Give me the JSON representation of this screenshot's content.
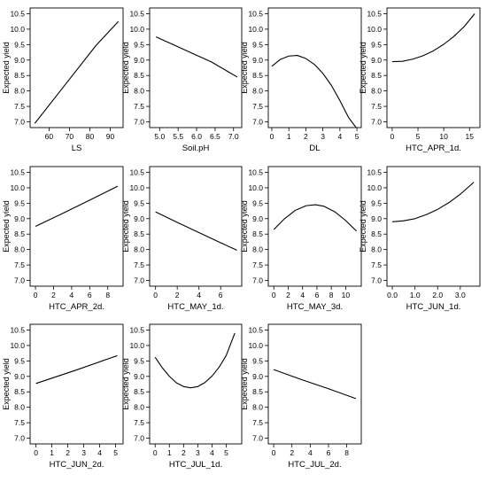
{
  "chart_data": [
    {
      "type": "line",
      "xlabel": "LS",
      "ylabel": "Expected yield",
      "xticks": [
        60,
        70,
        80,
        90
      ],
      "xlim": [
        52,
        95
      ],
      "ylim": [
        6.9,
        10.6
      ],
      "yticks": [
        7.0,
        7.5,
        8.0,
        8.5,
        9.0,
        9.5,
        10.0,
        10.5
      ],
      "x": [
        53,
        63,
        73,
        83,
        94
      ],
      "y": [
        6.95,
        7.79,
        8.63,
        9.47,
        10.25
      ]
    },
    {
      "type": "line",
      "xlabel": "Soil.pH",
      "ylabel": "Expected yield",
      "xticks": [
        5.0,
        5.5,
        6.0,
        6.5,
        7.0
      ],
      "xlim": [
        4.8,
        7.15
      ],
      "ylim": [
        6.9,
        10.6
      ],
      "yticks": [
        7.0,
        7.5,
        8.0,
        8.5,
        9.0,
        9.5,
        10.0,
        10.5
      ],
      "x": [
        4.9,
        5.4,
        5.9,
        6.4,
        7.1
      ],
      "y": [
        9.75,
        9.48,
        9.21,
        8.94,
        8.45
      ]
    },
    {
      "type": "line",
      "xlabel": "DL",
      "ylabel": "Expected yield",
      "xticks": [
        0,
        1,
        2,
        3,
        4,
        5
      ],
      "xlim": [
        -0.05,
        5.1
      ],
      "ylim": [
        6.9,
        10.6
      ],
      "yticks": [
        7.0,
        7.5,
        8.0,
        8.5,
        9.0,
        9.5,
        10.0,
        10.5
      ],
      "x": [
        0,
        0.5,
        1.0,
        1.5,
        2.0,
        2.5,
        3.0,
        3.5,
        4.0,
        4.5,
        5.0
      ],
      "y": [
        8.8,
        9.02,
        9.13,
        9.15,
        9.05,
        8.86,
        8.57,
        8.18,
        7.69,
        7.15,
        6.78
      ]
    },
    {
      "type": "line",
      "xlabel": "HTC_APR_1d.",
      "ylabel": "Expected yield",
      "xticks": [
        0,
        5,
        10,
        15
      ],
      "xlim": [
        -0.5,
        16.5
      ],
      "ylim": [
        6.9,
        10.6
      ],
      "yticks": [
        7.0,
        7.5,
        8.0,
        8.5,
        9.0,
        9.5,
        10.0,
        10.5
      ],
      "x": [
        0,
        2,
        4,
        6,
        8,
        10,
        12,
        14,
        16
      ],
      "y": [
        8.95,
        8.96,
        9.03,
        9.14,
        9.3,
        9.51,
        9.77,
        10.09,
        10.5
      ]
    },
    {
      "type": "line",
      "xlabel": "HTC_APR_2d.",
      "ylabel": "Expected yield",
      "xticks": [
        0,
        2,
        4,
        6,
        8
      ],
      "xlim": [
        -0.3,
        9.4
      ],
      "ylim": [
        6.9,
        10.6
      ],
      "yticks": [
        7.0,
        7.5,
        8.0,
        8.5,
        9.0,
        9.5,
        10.0,
        10.5
      ],
      "x": [
        0,
        3,
        6,
        9.1
      ],
      "y": [
        8.75,
        9.17,
        9.6,
        10.05
      ]
    },
    {
      "type": "line",
      "xlabel": "HTC_MAY_1d.",
      "ylabel": "Expected yield",
      "xticks": [
        0,
        2,
        4,
        6
      ],
      "xlim": [
        -0.3,
        7.7
      ],
      "ylim": [
        6.9,
        10.6
      ],
      "yticks": [
        7.0,
        7.5,
        8.0,
        8.5,
        9.0,
        9.5,
        10.0,
        10.5
      ],
      "x": [
        0,
        2,
        4,
        6,
        7.5
      ],
      "y": [
        9.22,
        8.88,
        8.55,
        8.22,
        7.98
      ]
    },
    {
      "type": "line",
      "xlabel": "HTC_MAY_3d.",
      "ylabel": "Expected yield",
      "xticks": [
        0,
        2,
        4,
        6,
        8,
        10
      ],
      "xlim": [
        -0.4,
        11.8
      ],
      "ylim": [
        6.9,
        10.6
      ],
      "yticks": [
        7.0,
        7.5,
        8.0,
        8.5,
        9.0,
        9.5,
        10.0,
        10.5
      ],
      "x": [
        0,
        1.5,
        3,
        4.5,
        5.8,
        7,
        8.5,
        10,
        11.5
      ],
      "y": [
        8.65,
        9.0,
        9.27,
        9.42,
        9.45,
        9.4,
        9.22,
        8.94,
        8.6
      ]
    },
    {
      "type": "line",
      "xlabel": "HTC_JUN_1d.",
      "ylabel": "Expected yield",
      "xticks": [
        0.0,
        1.0,
        2.0,
        3.0
      ],
      "xlim": [
        -0.12,
        3.75
      ],
      "ylim": [
        6.9,
        10.6
      ],
      "yticks": [
        7.0,
        7.5,
        8.0,
        8.5,
        9.0,
        9.5,
        10.0,
        10.5
      ],
      "x": [
        0,
        0.5,
        1.0,
        1.5,
        2.0,
        2.5,
        3.0,
        3.6
      ],
      "y": [
        8.9,
        8.93,
        9.0,
        9.13,
        9.3,
        9.52,
        9.79,
        10.18
      ]
    },
    {
      "type": "line",
      "xlabel": "HTC_JUN_2d.",
      "ylabel": "Expected yield",
      "xticks": [
        0,
        1,
        2,
        3,
        4,
        5
      ],
      "xlim": [
        -0.2,
        5.3
      ],
      "ylim": [
        6.9,
        10.6
      ],
      "yticks": [
        7.0,
        7.5,
        8.0,
        8.5,
        9.0,
        9.5,
        10.0,
        10.5
      ],
      "x": [
        0,
        2.5,
        5.1
      ],
      "y": [
        8.77,
        9.2,
        9.67
      ]
    },
    {
      "type": "line",
      "xlabel": "HTC_JUL_1d.",
      "ylabel": "Expected yield",
      "xticks": [
        0,
        1,
        2,
        3,
        4,
        5
      ],
      "xlim": [
        -0.2,
        5.9
      ],
      "ylim": [
        6.9,
        10.6
      ],
      "yticks": [
        7.0,
        7.5,
        8.0,
        8.5,
        9.0,
        9.5,
        10.0,
        10.5
      ],
      "x": [
        0,
        0.5,
        1.0,
        1.5,
        2.0,
        2.5,
        3.0,
        3.5,
        4.0,
        4.5,
        5.0,
        5.6
      ],
      "y": [
        9.62,
        9.28,
        9.0,
        8.79,
        8.67,
        8.63,
        8.67,
        8.8,
        9.01,
        9.3,
        9.68,
        10.4
      ]
    },
    {
      "type": "line",
      "xlabel": "HTC_JUL_2d.",
      "ylabel": "Expected yield",
      "xticks": [
        0,
        2,
        4,
        6,
        8
      ],
      "xlim": [
        -0.3,
        9.3
      ],
      "ylim": [
        6.9,
        10.6
      ],
      "yticks": [
        7.0,
        7.5,
        8.0,
        8.5,
        9.0,
        9.5,
        10.0,
        10.5
      ],
      "x": [
        0,
        3,
        6,
        9
      ],
      "y": [
        9.22,
        8.9,
        8.6,
        8.28
      ]
    }
  ]
}
